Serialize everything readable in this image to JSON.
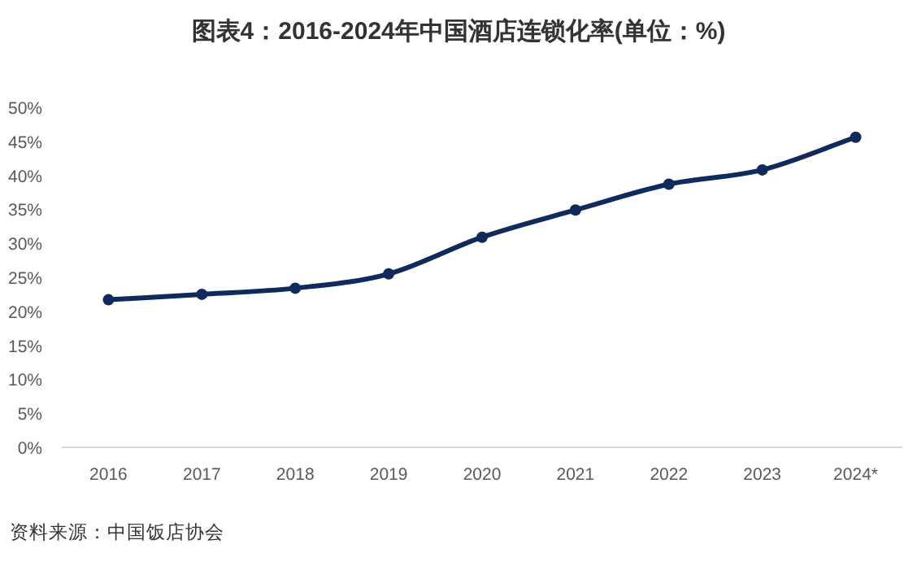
{
  "chart_data": {
    "type": "line",
    "title": "图表4：2016-2024年中国酒店连锁化率(单位：%)",
    "categories": [
      "2016",
      "2017",
      "2018",
      "2019",
      "2020",
      "2021",
      "2022",
      "2023",
      "2024*"
    ],
    "series": [
      {
        "color": "#102a5c",
        "values": [
          21.7,
          22.5,
          23.4,
          25.5,
          30.9,
          34.9,
          38.7,
          40.8,
          45.6
        ]
      }
    ],
    "ylim": [
      0,
      50
    ],
    "yticks": [
      {
        "value": 0,
        "label": "0%"
      },
      {
        "value": 5,
        "label": "5%"
      },
      {
        "value": 10,
        "label": "10%"
      },
      {
        "value": 15,
        "label": "15%"
      },
      {
        "value": 20,
        "label": "20%"
      },
      {
        "value": 25,
        "label": "25%"
      },
      {
        "value": 30,
        "label": "30%"
      },
      {
        "value": 35,
        "label": "35%"
      },
      {
        "value": 40,
        "label": "40%"
      },
      {
        "value": 45,
        "label": "45%"
      },
      {
        "value": 50,
        "label": "50%"
      }
    ],
    "grid": false,
    "marker": "circle",
    "line_style": "solid",
    "annotations": [
      "资料来源：中国饭店协会"
    ]
  }
}
